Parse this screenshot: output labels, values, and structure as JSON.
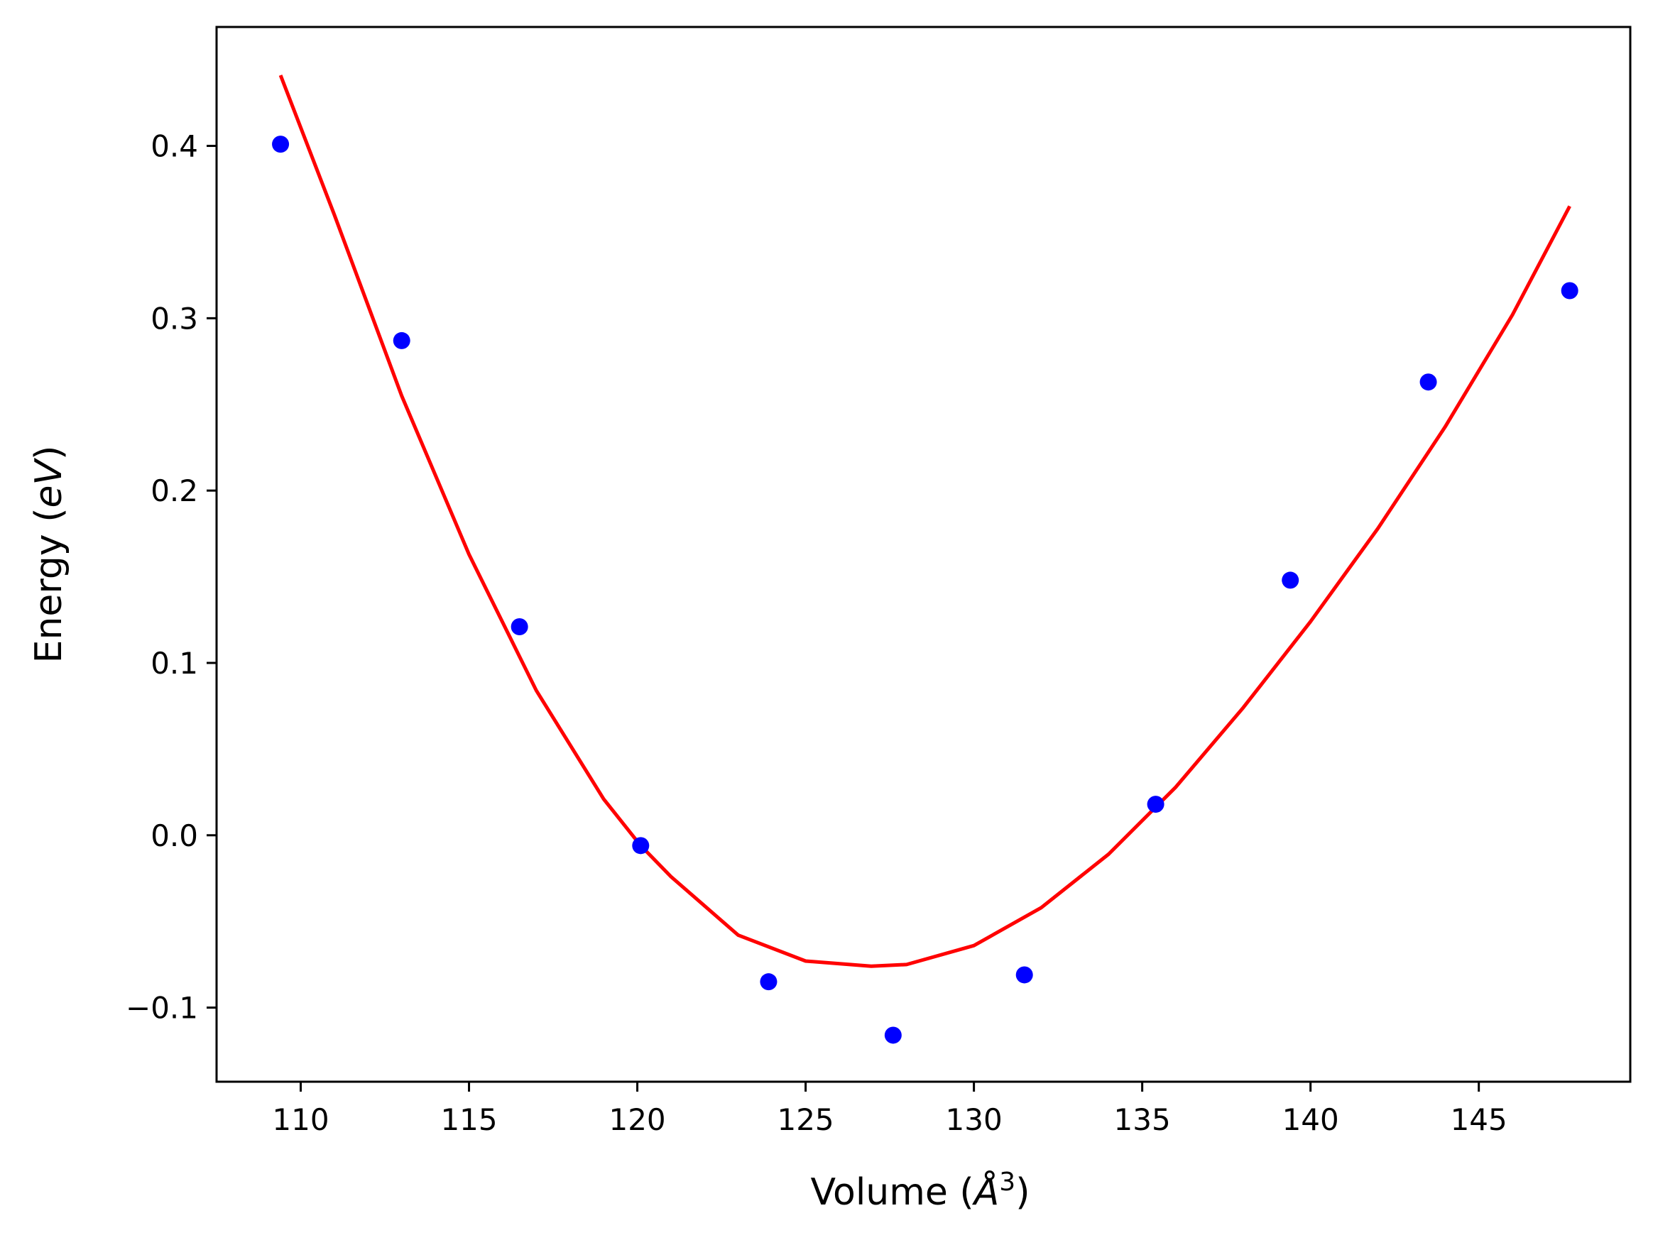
{
  "chart_data": {
    "type": "scatter",
    "title": "",
    "xlabel": {
      "prefix": "Volume (",
      "symbol": "Å",
      "sup": "3",
      "suffix": ")"
    },
    "ylabel": {
      "prefix": "Energy (",
      "symbol": "eV",
      "suffix": ")"
    },
    "xlim": [
      107.5,
      149.5
    ],
    "ylim": [
      -0.143,
      0.469
    ],
    "xticks": [
      110,
      115,
      120,
      125,
      130,
      135,
      140,
      145
    ],
    "xtick_labels": [
      "110",
      "115",
      "120",
      "125",
      "130",
      "135",
      "140",
      "145"
    ],
    "yticks": [
      -0.1,
      0.0,
      0.1,
      0.2,
      0.3,
      0.4
    ],
    "ytick_labels": [
      "−0.1",
      "0.0",
      "0.1",
      "0.2",
      "0.3",
      "0.4"
    ],
    "grid": false,
    "series": [
      {
        "name": "data",
        "kind": "scatter",
        "color": "#0000ff",
        "x": [
          109.4,
          113.0,
          116.5,
          120.1,
          123.9,
          127.6,
          131.5,
          135.4,
          139.4,
          143.5,
          147.7
        ],
        "y": [
          0.401,
          0.287,
          0.121,
          -0.006,
          -0.085,
          -0.116,
          -0.081,
          0.018,
          0.148,
          0.263,
          0.316
        ]
      },
      {
        "name": "fit",
        "kind": "line",
        "color": "#ff0000",
        "x": [
          109.4,
          111.0,
          113.0,
          115.0,
          117.0,
          119.0,
          120.1,
          121.0,
          123.0,
          125.0,
          126.95,
          128.0,
          130.0,
          132.0,
          134.0,
          136.0,
          138.0,
          140.0,
          142.0,
          144.0,
          146.0,
          147.7
        ],
        "y": [
          0.441,
          0.36,
          0.255,
          0.163,
          0.084,
          0.021,
          -0.006,
          -0.024,
          -0.058,
          -0.073,
          -0.076,
          -0.075,
          -0.064,
          -0.042,
          -0.011,
          0.028,
          0.074,
          0.124,
          0.178,
          0.237,
          0.302,
          0.365
        ]
      }
    ]
  }
}
